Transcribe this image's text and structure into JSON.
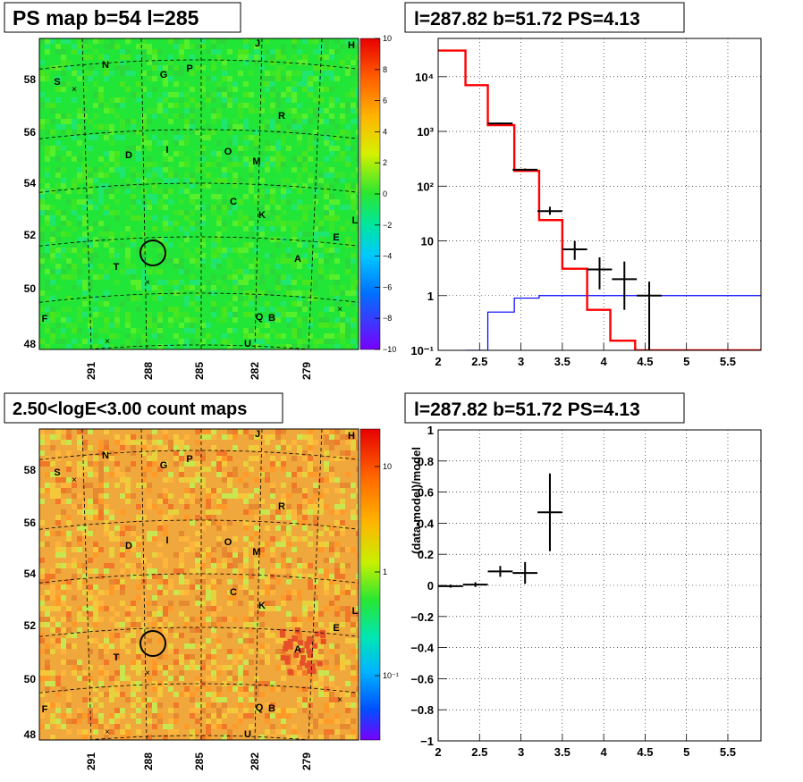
{
  "panels": {
    "tl_title": "PS map b=54 l=285",
    "tr_title": "l=287.82 b=51.72 PS=4.13",
    "bl_title": "2.50<logE<3.00 count maps",
    "br_title": "l=287.82 b=51.72 PS=4.13"
  },
  "sky_map": {
    "lat_ticks": [
      "58",
      "56",
      "54",
      "52",
      "50",
      "48"
    ],
    "lon_ticks": [
      "291",
      "288",
      "285",
      "282",
      "279"
    ],
    "sources": [
      "N",
      "J",
      "H",
      "S",
      "G",
      "P",
      "R",
      "D",
      "I",
      "O",
      "M",
      "C",
      "K",
      "L",
      "E",
      "T",
      "A",
      "F",
      "Q",
      "B",
      "U"
    ]
  },
  "ps_colorbar": {
    "ticks": [
      "10",
      "8",
      "6",
      "4",
      "2",
      "0",
      "−2",
      "−4",
      "−6",
      "−8",
      "−10"
    ]
  },
  "count_colorbar": {
    "ticks": [
      "10",
      "1",
      "10⁻¹"
    ]
  },
  "colors": {
    "model": "#ff0000",
    "background": "#0000ff",
    "data": "#000000",
    "ps_map_base": "#22e637",
    "count_map_base": "#f0a83c"
  },
  "chart_data": [
    {
      "type": "line",
      "title": "l=287.82 b=51.72 PS=4.13",
      "xlim": [
        2,
        5.9
      ],
      "ylim": [
        0.1,
        50000
      ],
      "yscale": "log",
      "x_ticks": [
        "2",
        "2.5",
        "3",
        "3.5",
        "4",
        "4.5",
        "5",
        "5.5"
      ],
      "y_ticks": [
        "10⁻¹",
        "1",
        "10",
        "10²",
        "10³",
        "10⁴"
      ],
      "grid": true,
      "model_step": {
        "edges": [
          2.0,
          2.33,
          2.6,
          2.92,
          3.22,
          3.5,
          3.8,
          4.08,
          4.38
        ],
        "values": [
          30000,
          7000,
          1300,
          190,
          24,
          3.1,
          0.55,
          0.15
        ]
      },
      "background_step": {
        "edges": [
          2.33,
          2.6,
          2.92,
          3.22,
          3.5,
          5.9
        ],
        "values": [
          0.1,
          0.5,
          0.9,
          1.0,
          1.0
        ]
      },
      "data_points": [
        {
          "x": 2.75,
          "y": 1400,
          "xerr": 0.15,
          "ylo": 1350,
          "yhi": 1450
        },
        {
          "x": 3.05,
          "y": 200,
          "xerr": 0.15,
          "ylo": 190,
          "yhi": 210
        },
        {
          "x": 3.35,
          "y": 35,
          "xerr": 0.15,
          "ylo": 30,
          "yhi": 42
        },
        {
          "x": 3.65,
          "y": 7,
          "xerr": 0.15,
          "ylo": 4.5,
          "yhi": 10
        },
        {
          "x": 3.95,
          "y": 3.0,
          "xerr": 0.15,
          "ylo": 1.3,
          "yhi": 5
        },
        {
          "x": 4.25,
          "y": 2.0,
          "xerr": 0.15,
          "ylo": 0.55,
          "yhi": 4.2
        },
        {
          "x": 4.55,
          "y": 1.0,
          "xerr": 0.15,
          "ylo": 0.1,
          "yhi": 1.8
        }
      ]
    },
    {
      "type": "scatter",
      "title": "l=287.82 b=51.72 PS=4.13",
      "ylabel": "(data-model)/model",
      "xlim": [
        2,
        5.9
      ],
      "ylim": [
        -1,
        1
      ],
      "x_ticks": [
        "2",
        "2.5",
        "3",
        "3.5",
        "4",
        "4.5",
        "5",
        "5.5"
      ],
      "y_ticks": [
        "1",
        "0.8",
        "0.6",
        "0.4",
        "0.2",
        "0",
        "−0.2",
        "−0.4",
        "−0.6",
        "−0.8",
        "−1"
      ],
      "grid": true,
      "points": [
        {
          "x": 2.15,
          "y": -0.005,
          "xerr": 0.15,
          "yerr": 0.01
        },
        {
          "x": 2.45,
          "y": 0.005,
          "xerr": 0.15,
          "yerr": 0.015
        },
        {
          "x": 2.75,
          "y": 0.09,
          "xerr": 0.15,
          "yerr": 0.035
        },
        {
          "x": 3.05,
          "y": 0.08,
          "xerr": 0.15,
          "yerr": 0.07
        },
        {
          "x": 3.35,
          "y": 0.47,
          "xerr": 0.15,
          "yerr": 0.25
        }
      ]
    }
  ]
}
